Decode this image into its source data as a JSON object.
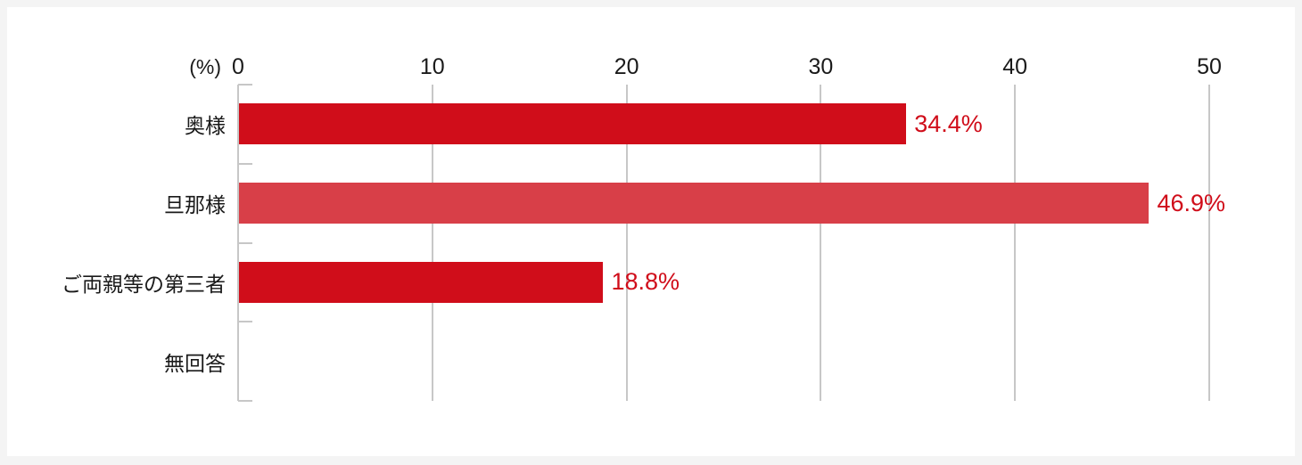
{
  "page": {
    "background": "#f4f4f4",
    "card_background": "#ffffff"
  },
  "chart_data": {
    "type": "bar",
    "orientation": "horizontal",
    "title": "",
    "unit_label": "(%)",
    "categories": [
      "奥様",
      "旦那様",
      "ご両親等の第三者",
      "無回答"
    ],
    "values": [
      34.4,
      46.9,
      18.8,
      null
    ],
    "value_labels": [
      "34.4%",
      "46.9%",
      "18.8%",
      ""
    ],
    "x_ticks": [
      0,
      10,
      20,
      30,
      40,
      50
    ],
    "xlim": [
      0,
      50
    ],
    "grid": true,
    "legend": false,
    "bar_colors": [
      "#d00d1a",
      "#d83f48",
      "#d00d1a",
      "#d00d1a"
    ],
    "value_label_color": "#d00d1a",
    "grid_color": "#c7c7c7",
    "text_color": "#1a1a1a"
  }
}
